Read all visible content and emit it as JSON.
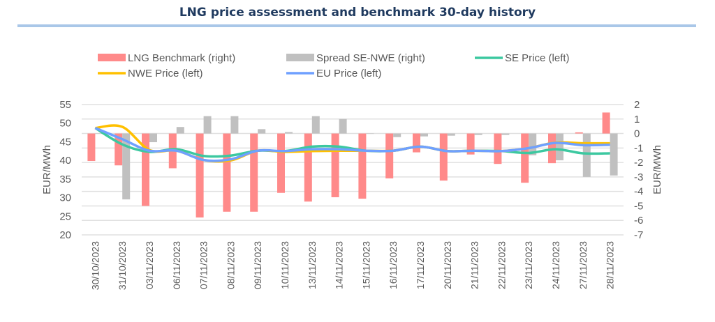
{
  "chart_data": {
    "type": "bar+line",
    "title": "LNG price assessment and benchmark 30-day history",
    "categories": [
      "30/10/2023",
      "31/10/2023",
      "03/11/2023",
      "06/11/2023",
      "07/11/2023",
      "08/11/2023",
      "09/11/2023",
      "10/11/2023",
      "13/11/2023",
      "14/11/2023",
      "15/11/2023",
      "16/11/2023",
      "17/11/2023",
      "20/11/2023",
      "21/11/2023",
      "22/11/2023",
      "23/11/2023",
      "24/11/2023",
      "27/11/2023",
      "28/11/2023"
    ],
    "ylabel_left": "EUR/MWh",
    "ylabel_right": "EUR/MWh",
    "ylim_left": [
      20,
      55
    ],
    "yticks_left": [
      20,
      25,
      30,
      35,
      40,
      45,
      50,
      55
    ],
    "ylim_right": [
      -7,
      2
    ],
    "yticks_right": [
      -7,
      -6,
      -5,
      -4,
      -3,
      -2,
      -1,
      0,
      1,
      2
    ],
    "grid": true,
    "legend": "top",
    "series": [
      {
        "name": "LNG Benchmark (right)",
        "type": "bar",
        "axis": "right",
        "color": "#ff8a8a",
        "values": [
          -1.9,
          -2.2,
          -5.0,
          -2.4,
          -5.8,
          -5.4,
          -5.4,
          -4.1,
          -4.7,
          -4.4,
          -4.5,
          -3.1,
          -1.3,
          -3.25,
          -1.45,
          -2.1,
          -3.4,
          -2.05,
          0.08,
          1.45
        ]
      },
      {
        "name": "Spread SE-NWE (right)",
        "type": "bar",
        "axis": "right",
        "color": "#c0c0c0",
        "values": [
          0,
          -4.55,
          -0.6,
          0.45,
          1.2,
          1.2,
          0.3,
          0.1,
          1.2,
          1.0,
          0,
          -0.25,
          -0.2,
          -0.15,
          -0.1,
          -0.1,
          -1.5,
          -1.85,
          -3.0,
          -2.9
        ]
      },
      {
        "name": "SE Price (left)",
        "type": "line",
        "axis": "left",
        "color": "#3cc8a0",
        "values": [
          48.7,
          44.3,
          42.3,
          43.0,
          41.2,
          41.3,
          42.6,
          42.5,
          43.7,
          43.7,
          42.6,
          42.6,
          43.7,
          42.5,
          42.6,
          42.5,
          42.0,
          43.0,
          41.9,
          41.9
        ]
      },
      {
        "name": "NWE Price (left)",
        "type": "line",
        "axis": "left",
        "color": "#ffc000",
        "values": [
          48.7,
          49.0,
          42.8,
          42.6,
          40.1,
          40.0,
          42.6,
          42.3,
          42.5,
          42.6,
          42.6,
          42.6,
          43.7,
          42.5,
          42.6,
          42.5,
          43.3,
          44.8,
          44.6,
          44.6
        ]
      },
      {
        "name": "EU Price (left)",
        "type": "line",
        "axis": "left",
        "color": "#6fa0ff",
        "values": [
          48.7,
          45.7,
          42.6,
          42.6,
          40.1,
          40.3,
          42.6,
          42.5,
          43.0,
          43.0,
          42.6,
          42.6,
          43.7,
          42.5,
          42.6,
          42.5,
          43.3,
          44.7,
          44.1,
          44.2
        ]
      }
    ]
  }
}
